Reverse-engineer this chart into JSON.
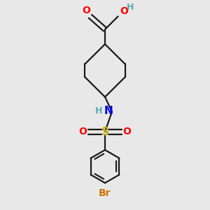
{
  "background_color": "#e8e8e8",
  "colors": {
    "O": "#ff0000",
    "N": "#0000ee",
    "S": "#ccaa00",
    "Br": "#cc7700",
    "C": "#1a1a1a",
    "H": "#5aaaaa"
  },
  "bond_lw": 1.6,
  "font_size": 10,
  "figsize": [
    3.0,
    3.0
  ],
  "dpi": 100
}
